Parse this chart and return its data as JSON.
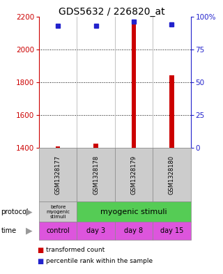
{
  "title": "GDS5632 / 226820_at",
  "samples": [
    "GSM1328177",
    "GSM1328178",
    "GSM1328179",
    "GSM1328180"
  ],
  "transformed_counts": [
    1410,
    1425,
    2180,
    1840
  ],
  "percentile_ranks": [
    93,
    93,
    96,
    94
  ],
  "ylim_left": [
    1400,
    2200
  ],
  "ylim_right": [
    0,
    100
  ],
  "yticks_left": [
    1400,
    1600,
    1800,
    2000,
    2200
  ],
  "yticks_right": [
    0,
    25,
    50,
    75,
    100
  ],
  "ytick_labels_right": [
    "0",
    "25",
    "50",
    "75",
    "100%"
  ],
  "bar_color": "#cc0000",
  "dot_color": "#2222cc",
  "time_labels": [
    "control",
    "day 3",
    "day 8",
    "day 15"
  ],
  "time_color": "#dd55dd",
  "protocol_gray": "#cccccc",
  "protocol_green": "#55cc55",
  "legend_bar_color": "#cc0000",
  "legend_dot_color": "#2222cc",
  "legend_text1": "transformed count",
  "legend_text2": "percentile rank within the sample",
  "axis_color_left": "#cc0000",
  "axis_color_right": "#2222cc",
  "grid_yticks": [
    1600,
    1800,
    2000
  ]
}
